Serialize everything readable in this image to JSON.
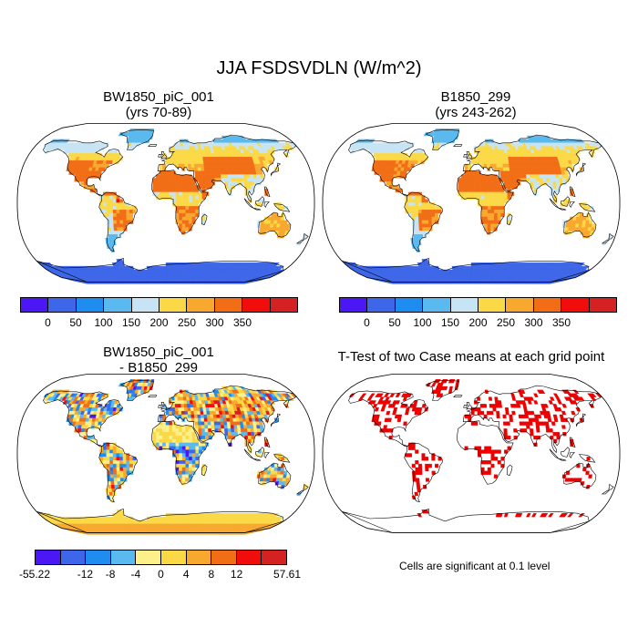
{
  "chart_data": {
    "title": "JJA FSDSVDLN (W/m^2)",
    "panels": [
      {
        "type": "heatmap",
        "projection": "Robinson",
        "title_line1": "BW1850_piC_001",
        "title_line2": "(yrs 70-89)",
        "colorbar": {
          "levels": [
            "0",
            "50",
            "100",
            "150",
            "200",
            "250",
            "300",
            "350"
          ],
          "colors": [
            "#4b17f5",
            "#3d66e8",
            "#1f8df0",
            "#5ab9ee",
            "#c6e4f4",
            "#fbd946",
            "#f8a82f",
            "#f26e16",
            "#f20d0d",
            "#d42222"
          ]
        }
      },
      {
        "type": "heatmap",
        "projection": "Robinson",
        "title_line1": "B1850_299",
        "title_line2": "(yrs 243-262)",
        "colorbar": {
          "levels": [
            "0",
            "50",
            "100",
            "150",
            "200",
            "250",
            "300",
            "350"
          ],
          "colors": [
            "#4b17f5",
            "#3d66e8",
            "#1f8df0",
            "#5ab9ee",
            "#c6e4f4",
            "#fbd946",
            "#f8a82f",
            "#f26e16",
            "#f20d0d",
            "#d42222"
          ]
        }
      },
      {
        "type": "heatmap",
        "projection": "Robinson",
        "title_line1": "BW1850_piC_001",
        "title_line2": "- B1850_299",
        "colorbar": {
          "levels": [
            "-55.22",
            "-12",
            "-8",
            "-4",
            "0",
            "4",
            "8",
            "12",
            "57.61"
          ],
          "colors": [
            "#4b17f5",
            "#3d66e8",
            "#1f8df0",
            "#5ab9ee",
            "#fdf08a",
            "#fbd946",
            "#f8a82f",
            "#f26e16",
            "#f20d0d",
            "#d42222"
          ]
        }
      },
      {
        "type": "heatmap",
        "projection": "Robinson",
        "title_line1": "T-Test of two Case means at each grid point",
        "note": "Cells are significant at 0.1 level",
        "sig_color": "#ee0000"
      }
    ]
  }
}
